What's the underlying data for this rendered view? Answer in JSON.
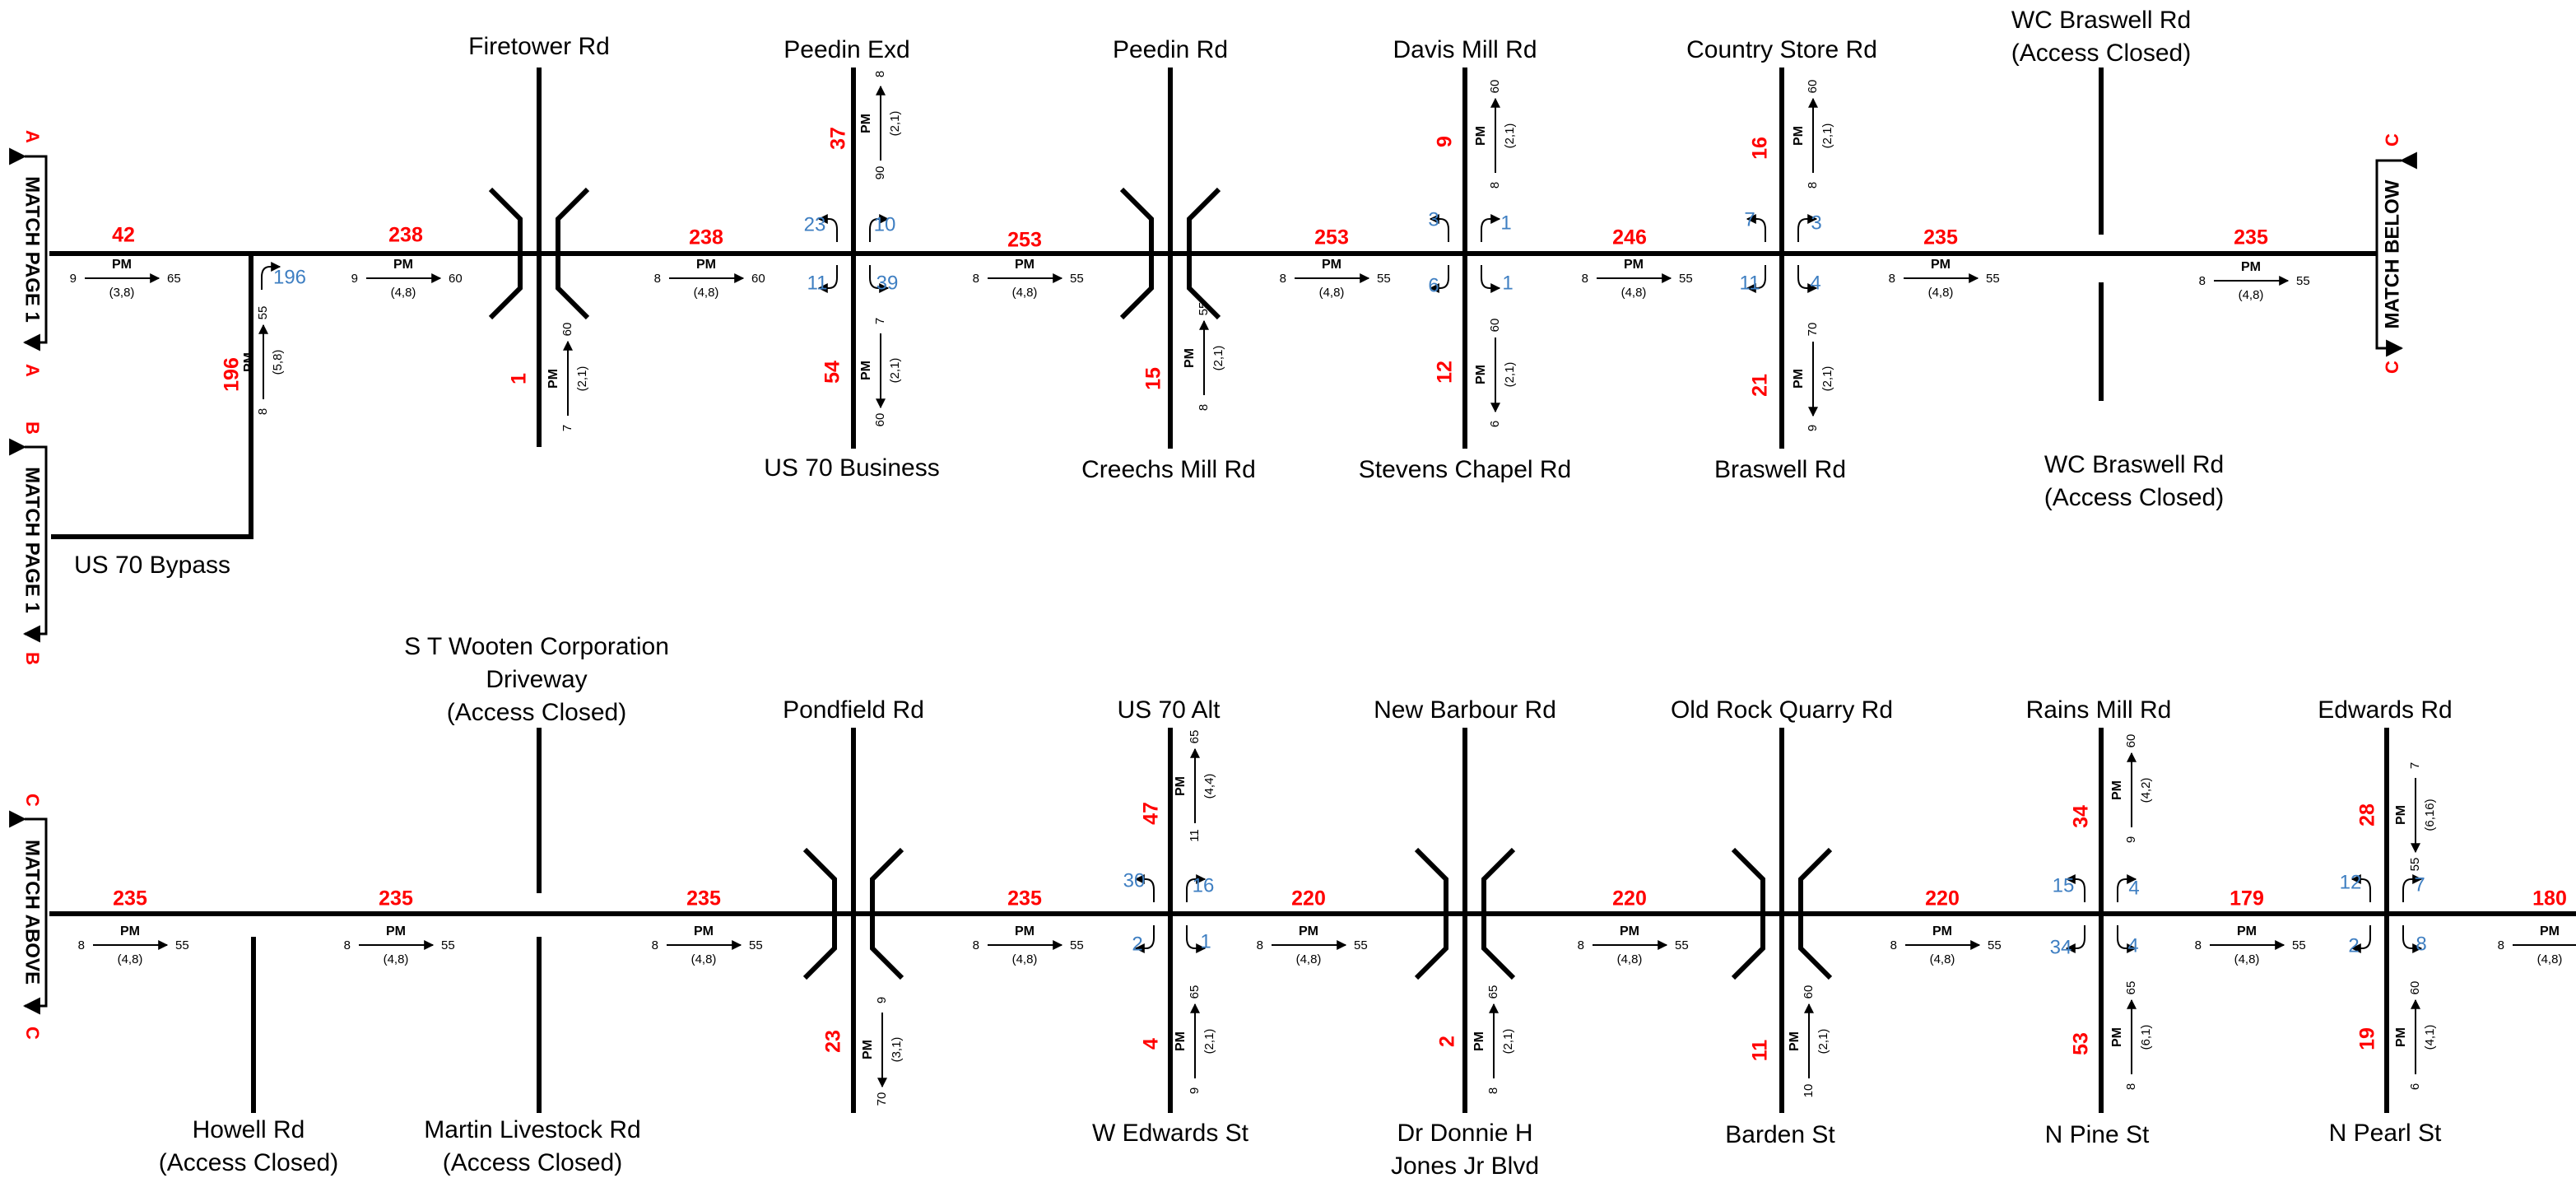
{
  "matches": [
    {
      "text": "MATCH PAGE 1",
      "letter": "A"
    },
    {
      "text": "MATCH PAGE 1",
      "letter": "B"
    },
    {
      "text": "MATCH BELOW",
      "letter": "C"
    },
    {
      "text": "MATCH ABOVE",
      "letter": "C"
    }
  ],
  "roads": [
    {
      "id": "firetower",
      "lines": [
        "Firetower Rd"
      ]
    },
    {
      "id": "peedin-exd",
      "lines": [
        "Peedin Exd"
      ]
    },
    {
      "id": "peedin-rd",
      "lines": [
        "Peedin Rd"
      ]
    },
    {
      "id": "davis-mill",
      "lines": [
        "Davis Mill Rd"
      ]
    },
    {
      "id": "country-store",
      "lines": [
        "Country Store Rd"
      ]
    },
    {
      "id": "wc-braswell-n",
      "lines": [
        "WC Braswell Rd",
        "(Access Closed)"
      ]
    },
    {
      "id": "us70-business",
      "lines": [
        "US 70 Business"
      ]
    },
    {
      "id": "creechs-mill",
      "lines": [
        "Creechs Mill Rd"
      ]
    },
    {
      "id": "stevens-chapel",
      "lines": [
        "Stevens Chapel Rd"
      ]
    },
    {
      "id": "braswell-rd",
      "lines": [
        "Braswell Rd"
      ]
    },
    {
      "id": "wc-braswell-s",
      "lines": [
        "WC Braswell Rd",
        "(Access Closed)"
      ]
    },
    {
      "id": "us70-bypass",
      "lines": [
        "US 70 Bypass"
      ]
    },
    {
      "id": "st-wooten",
      "lines": [
        "S T Wooten Corporation",
        "Driveway",
        "(Access Closed)"
      ]
    },
    {
      "id": "pondfield",
      "lines": [
        "Pondfield Rd"
      ]
    },
    {
      "id": "us70-alt",
      "lines": [
        "US 70 Alt"
      ]
    },
    {
      "id": "new-barbour",
      "lines": [
        "New Barbour Rd"
      ]
    },
    {
      "id": "old-rock-quarry",
      "lines": [
        "Old Rock Quarry Rd"
      ]
    },
    {
      "id": "rains-mill",
      "lines": [
        "Rains Mill Rd"
      ]
    },
    {
      "id": "edwards-rd",
      "lines": [
        "Edwards Rd"
      ]
    },
    {
      "id": "howell",
      "lines": [
        "Howell Rd",
        "(Access Closed)"
      ]
    },
    {
      "id": "martin-livestock",
      "lines": [
        "Martin Livestock Rd",
        "(Access Closed)"
      ]
    },
    {
      "id": "w-edwards",
      "lines": [
        "W Edwards St"
      ]
    },
    {
      "id": "dr-donnie",
      "lines": [
        "Dr Donnie H",
        "Jones Jr Blvd"
      ]
    },
    {
      "id": "barden",
      "lines": [
        "Barden St"
      ]
    },
    {
      "id": "n-pine",
      "lines": [
        "N Pine St"
      ]
    },
    {
      "id": "n-pearl",
      "lines": [
        "N Pearl St"
      ]
    }
  ],
  "volumes": [
    "42",
    "238",
    "238",
    "253",
    "253",
    "246",
    "235",
    "235",
    "196",
    "1",
    "37",
    "54",
    "15",
    "9",
    "12",
    "16",
    "21",
    "235",
    "235",
    "235",
    "235",
    "220",
    "220",
    "220",
    "179",
    "180",
    "23",
    "47",
    "4",
    "2",
    "11",
    "34",
    "53",
    "28",
    "19"
  ],
  "turns": [
    "196",
    "23",
    "10",
    "11",
    "39",
    "3",
    "1",
    "6",
    "1",
    "7",
    "3",
    "11",
    "4",
    "30",
    "16",
    "2",
    "1",
    "15",
    "4",
    "34",
    "4",
    "12",
    "7",
    "2",
    "8"
  ],
  "pm": [
    {
      "lt": "9",
      "rt": "65",
      "pair": "(3,8)"
    },
    {
      "lt": "9",
      "rt": "60",
      "pair": "(4,8)"
    },
    {
      "lt": "8",
      "rt": "60",
      "pair": "(4,8)"
    },
    {
      "lt": "8",
      "rt": "55",
      "pair": "(4,8)"
    },
    {
      "lt": "8",
      "rt": "55",
      "pair": "(4,8)"
    },
    {
      "lt": "8",
      "rt": "55",
      "pair": "(4,8)"
    },
    {
      "lt": "8",
      "rt": "55",
      "pair": "(4,8)"
    },
    {
      "lt": "8",
      "rt": "55",
      "pair": "(4,8)"
    },
    {
      "lt": "8",
      "rt": "55",
      "pair": "(5,8)"
    },
    {
      "lt": "7",
      "rt": "60",
      "pair": "(2,1)"
    },
    {
      "lt": "90",
      "rt": "8",
      "pair": "(2,1)"
    },
    {
      "lt": "60",
      "rt": "7",
      "pair": "(2,1)"
    },
    {
      "lt": "8",
      "rt": "55",
      "pair": "(2,1)"
    },
    {
      "lt": "8",
      "rt": "60",
      "pair": "(2,1)"
    },
    {
      "lt": "6",
      "rt": "60",
      "pair": "(2,1)"
    },
    {
      "lt": "8",
      "rt": "60",
      "pair": "(2,1)"
    },
    {
      "lt": "9",
      "rt": "70",
      "pair": "(2,1)"
    },
    {
      "lt": "8",
      "rt": "55",
      "pair": "(4,8)"
    },
    {
      "lt": "8",
      "rt": "55",
      "pair": "(4,8)"
    },
    {
      "lt": "8",
      "rt": "55",
      "pair": "(4,8)"
    },
    {
      "lt": "8",
      "rt": "55",
      "pair": "(4,8)"
    },
    {
      "lt": "8",
      "rt": "55",
      "pair": "(4,8)"
    },
    {
      "lt": "8",
      "rt": "55",
      "pair": "(4,8)"
    },
    {
      "lt": "8",
      "rt": "55",
      "pair": "(4,8)"
    },
    {
      "lt": "8",
      "rt": "55",
      "pair": "(4,8)"
    },
    {
      "lt": "8",
      "rt": "55",
      "pair": "(4,8)"
    },
    {
      "lt": "70",
      "rt": "9",
      "pair": "(3,1)"
    },
    {
      "lt": "11",
      "rt": "65",
      "pair": "(4,4)"
    },
    {
      "lt": "9",
      "rt": "65",
      "pair": "(2,1)"
    },
    {
      "lt": "8",
      "rt": "65",
      "pair": "(2,1)"
    },
    {
      "lt": "10",
      "rt": "60",
      "pair": "(2,1)"
    },
    {
      "lt": "9",
      "rt": "60",
      "pair": "(4,2)"
    },
    {
      "lt": "8",
      "rt": "65",
      "pair": "(6,1)"
    },
    {
      "lt": "55",
      "rt": "7",
      "pair": "(6,16)"
    },
    {
      "lt": "6",
      "rt": "60",
      "pair": "(4,1)"
    }
  ],
  "labels": {
    "pm": "PM"
  }
}
